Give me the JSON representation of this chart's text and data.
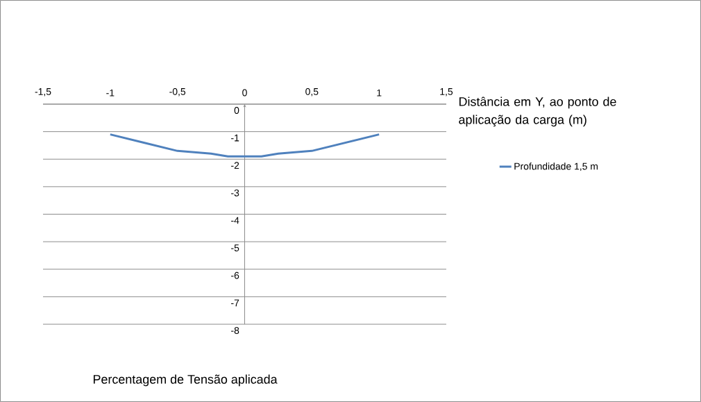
{
  "chart_data": {
    "type": "line",
    "xlabel": "Distância em Y, ao ponto de aplicação da carga (m)",
    "annotations": [
      "Percentagem de Tensão aplicada"
    ],
    "x": [
      -1,
      -0.75,
      -0.5,
      -0.25,
      -0.125,
      0,
      0.125,
      0.25,
      0.5,
      0.75,
      1
    ],
    "series": [
      {
        "name": "Profundidade 1,5 m",
        "color": "#4f81bd",
        "values": [
          -1.1,
          -1.4,
          -1.7,
          -1.8,
          -1.9,
          -1.9,
          -1.9,
          -1.8,
          -1.7,
          -1.4,
          -1.1
        ]
      }
    ],
    "xlim": [
      -1.5,
      1.5
    ],
    "xticks": [
      {
        "value": -1.5,
        "label": "-1,5"
      },
      {
        "value": -1,
        "label": "-1"
      },
      {
        "value": -0.5,
        "label": "-0,5"
      },
      {
        "value": 0,
        "label": "0"
      },
      {
        "value": 0.5,
        "label": "0,5"
      },
      {
        "value": 1,
        "label": "1"
      },
      {
        "value": 1.5,
        "label": "1,5"
      }
    ],
    "ylim": [
      -8,
      0
    ],
    "yticks": [
      0,
      -1,
      -2,
      -3,
      -4,
      -5,
      -6,
      -7,
      -8
    ],
    "grid": "y",
    "legend": "right"
  }
}
